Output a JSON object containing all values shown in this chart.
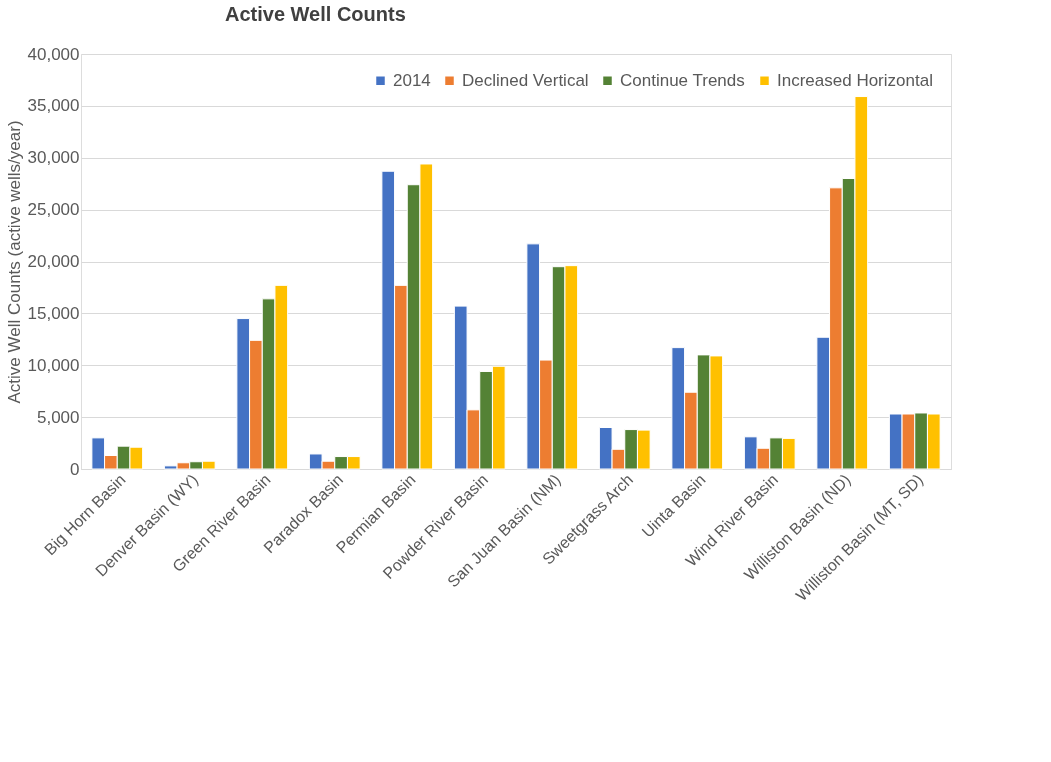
{
  "chart_data": {
    "type": "bar",
    "title": "Active Well Counts",
    "ylabel": "Active Well Counts (active wells/year)",
    "categories": [
      "Big Horn Basin",
      "Denver Basin (WY)",
      "Green River Basin",
      "Paradox Basin",
      "Permian Basin",
      "Powder River Basin",
      "San Juan Basin (NM)",
      "Sweetgrass Arch",
      "Uinta Basin",
      "Wind River Basin",
      "Williston Basin (ND)",
      "Williston Basin  (MT, SD)"
    ],
    "series": [
      {
        "name": "2014",
        "color": "#4472c4",
        "values": [
          3000,
          300,
          14500,
          1450,
          28700,
          15700,
          21700,
          4000,
          11700,
          3100,
          12700,
          5300
        ]
      },
      {
        "name": "Declined Vertical",
        "color": "#ed7d31",
        "values": [
          1300,
          600,
          12400,
          750,
          17700,
          5700,
          10500,
          1900,
          7400,
          2000,
          27100,
          5300
        ]
      },
      {
        "name": "Continue Trends",
        "color": "#548235",
        "values": [
          2200,
          700,
          16400,
          1200,
          27400,
          9400,
          19500,
          3800,
          11000,
          3000,
          28000,
          5400
        ]
      },
      {
        "name": "Increased Horizontal",
        "color": "#ffc000",
        "values": [
          2100,
          750,
          17700,
          1200,
          29400,
          9900,
          19600,
          3750,
          10900,
          2950,
          35900,
          5300
        ]
      }
    ],
    "ylim": [
      0,
      40000
    ],
    "yticks": [
      {
        "value": 0,
        "label": "0"
      },
      {
        "value": 5000,
        "label": "5,000"
      },
      {
        "value": 10000,
        "label": "10,000"
      },
      {
        "value": 15000,
        "label": "15,000"
      },
      {
        "value": 20000,
        "label": "20,000"
      },
      {
        "value": 25000,
        "label": "25,000"
      },
      {
        "value": 30000,
        "label": "30,000"
      },
      {
        "value": 35000,
        "label": "35,000"
      },
      {
        "value": 40000,
        "label": "40,000"
      }
    ],
    "grid": "y",
    "legend": "top right"
  }
}
